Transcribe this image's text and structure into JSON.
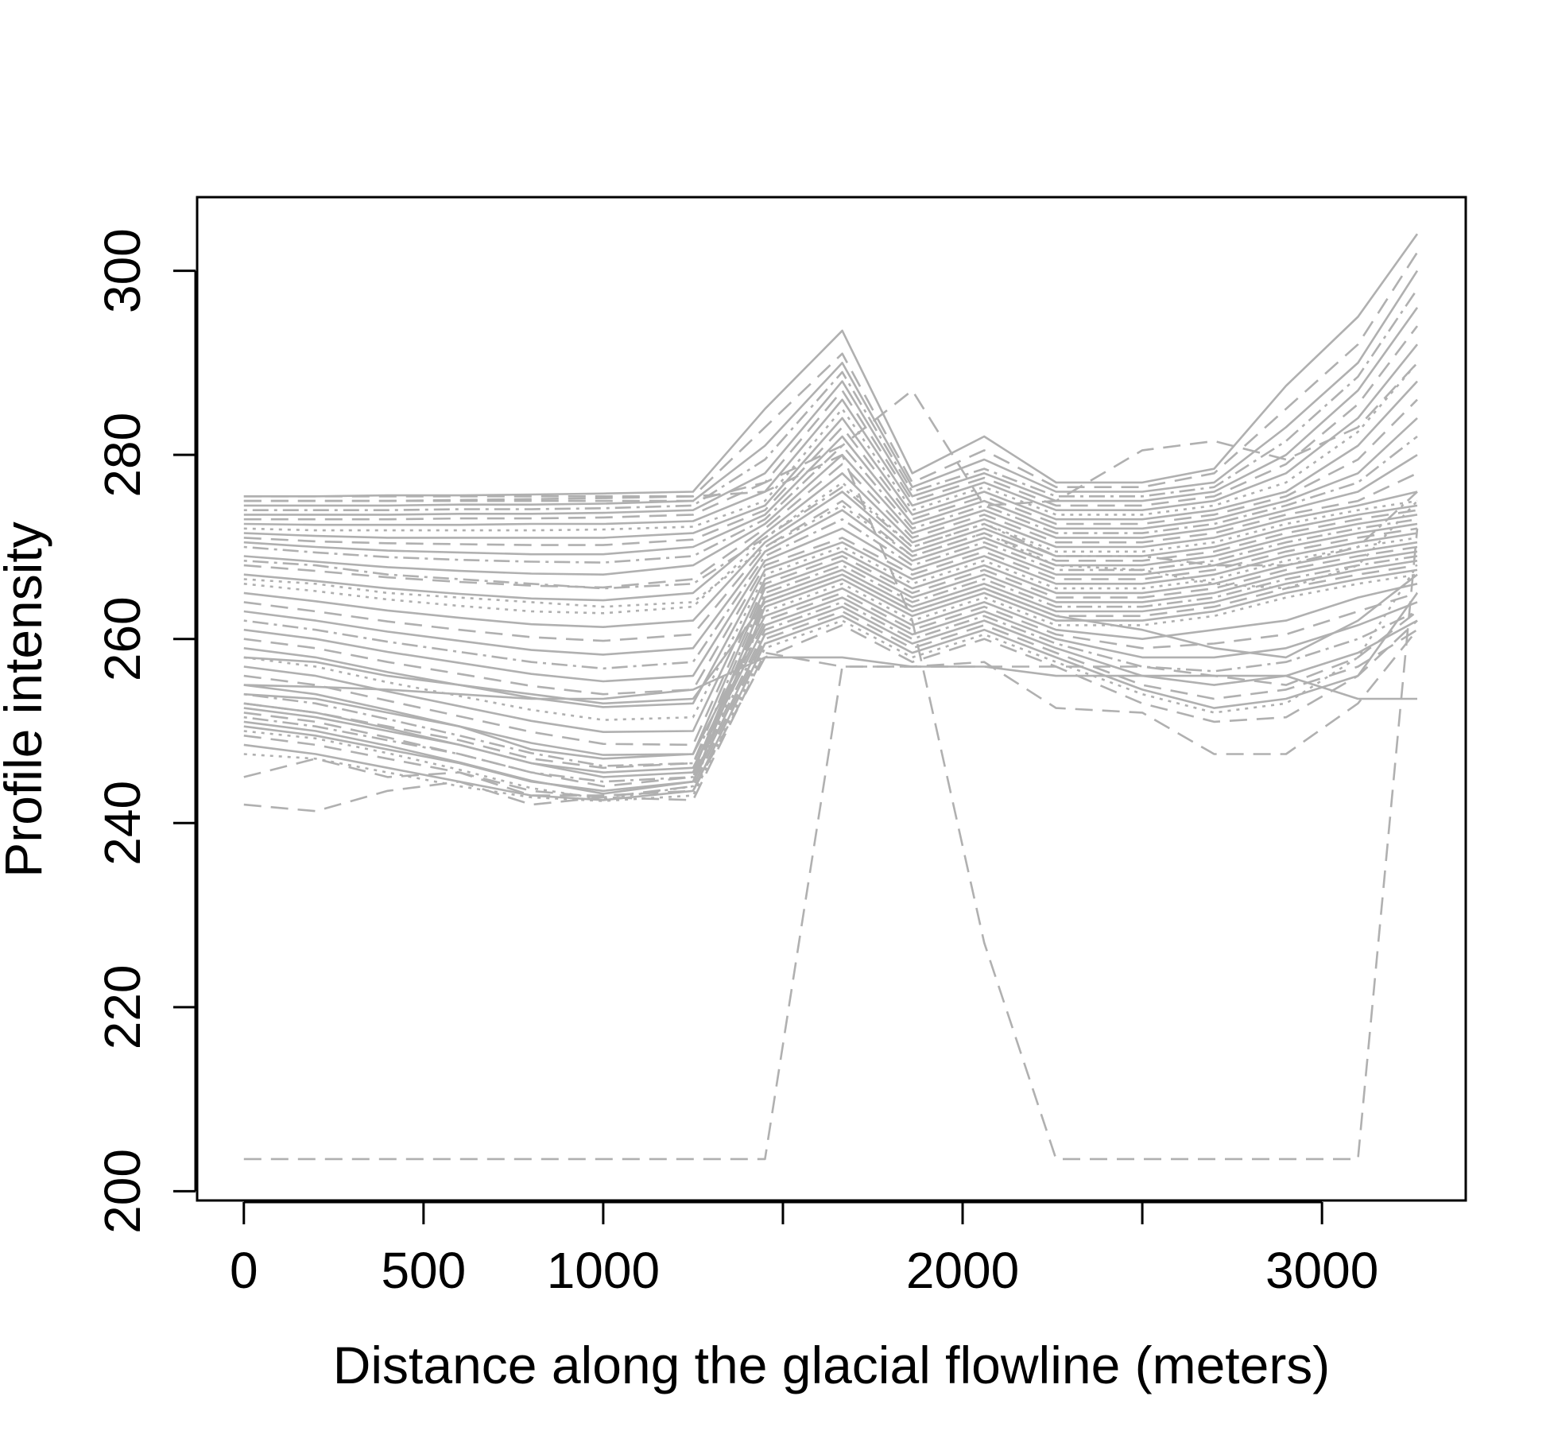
{
  "chart_data": {
    "type": "line",
    "title": "",
    "xlabel": "Distance along the glacial flowline (meters)",
    "ylabel": "Profile intensity",
    "xlim": [
      -130,
      3400
    ],
    "ylim": [
      199,
      308
    ],
    "x_ticks": [
      0,
      500,
      1000,
      1500,
      2000,
      2500,
      3000
    ],
    "x_tick_labels": [
      "0",
      "500",
      "1000",
      "",
      "2000",
      "",
      "3000"
    ],
    "y_ticks": [
      200,
      220,
      240,
      260,
      280,
      300
    ],
    "y_tick_labels": [
      "200",
      "220",
      "240",
      "260",
      "280",
      "300"
    ],
    "grid": false,
    "legend": "none",
    "line_color": "#b0b0b0",
    "x": [
      0,
      200,
      400,
      600,
      800,
      1000,
      1250,
      1450,
      1665,
      1860,
      2060,
      2260,
      2500,
      2700,
      2900,
      3100,
      3265
    ],
    "series": [
      {
        "style": "solid",
        "values": [
          275.5,
          275.5,
          275.6,
          275.6,
          275.7,
          275.8,
          276.0,
          285.0,
          293.5,
          278.0,
          282.0,
          277.0,
          277.0,
          278.5,
          287.5,
          295.0,
          304.0
        ]
      },
      {
        "style": "dashed",
        "values": [
          275.0,
          275.0,
          275.0,
          275.1,
          275.2,
          275.3,
          275.5,
          283.0,
          291.0,
          277.0,
          280.5,
          276.5,
          276.5,
          278.0,
          285.0,
          292.0,
          302.0
        ]
      },
      {
        "style": "solid",
        "values": [
          274.5,
          274.5,
          274.5,
          274.6,
          274.6,
          274.7,
          275.0,
          281.0,
          290.0,
          276.5,
          279.5,
          276.0,
          276.0,
          277.0,
          283.0,
          290.0,
          300.0
        ]
      },
      {
        "style": "dotdash",
        "values": [
          274.0,
          274.0,
          274.0,
          274.1,
          274.1,
          274.2,
          274.5,
          279.5,
          289.0,
          276.0,
          278.5,
          275.5,
          275.5,
          276.5,
          281.5,
          288.5,
          298.0
        ]
      },
      {
        "style": "solid",
        "values": [
          273.5,
          273.5,
          273.5,
          273.6,
          273.6,
          273.7,
          274.0,
          278.0,
          288.0,
          275.5,
          278.0,
          275.0,
          275.0,
          276.0,
          280.0,
          287.0,
          296.0
        ]
      },
      {
        "style": "dashed",
        "values": [
          273.0,
          273.0,
          273.0,
          273.1,
          273.1,
          273.2,
          273.5,
          277.0,
          287.0,
          275.0,
          277.5,
          274.5,
          274.5,
          275.5,
          279.0,
          285.5,
          294.0
        ]
      },
      {
        "style": "solid",
        "values": [
          272.5,
          272.4,
          272.4,
          272.4,
          272.5,
          272.5,
          272.8,
          276.0,
          286.0,
          274.5,
          277.0,
          274.0,
          274.0,
          275.0,
          278.0,
          284.0,
          292.0
        ]
      },
      {
        "style": "dotted",
        "values": [
          272.0,
          271.8,
          271.8,
          271.8,
          271.8,
          271.9,
          272.2,
          275.0,
          285.0,
          274.0,
          276.5,
          273.5,
          273.5,
          274.5,
          277.0,
          282.5,
          290.0
        ]
      },
      {
        "style": "solid",
        "values": [
          271.5,
          271.2,
          271.0,
          271.0,
          271.0,
          271.0,
          271.5,
          274.5,
          284.0,
          273.5,
          276.0,
          273.0,
          273.0,
          274.0,
          276.0,
          281.0,
          288.0
        ]
      },
      {
        "style": "dashed",
        "values": [
          271.0,
          270.6,
          270.4,
          270.3,
          270.2,
          270.2,
          270.8,
          274.0,
          283.0,
          273.0,
          275.5,
          272.5,
          272.5,
          273.5,
          275.5,
          279.5,
          286.0
        ]
      },
      {
        "style": "solid",
        "values": [
          270.5,
          270.0,
          269.6,
          269.4,
          269.2,
          269.2,
          270.0,
          273.5,
          282.0,
          272.5,
          275.0,
          272.0,
          272.0,
          273.0,
          275.0,
          278.0,
          284.0
        ]
      },
      {
        "style": "dotdash",
        "values": [
          270.0,
          269.4,
          268.9,
          268.6,
          268.4,
          268.3,
          269.0,
          273.0,
          281.0,
          272.0,
          274.5,
          271.5,
          271.5,
          272.5,
          274.5,
          277.0,
          282.0
        ]
      },
      {
        "style": "solid",
        "values": [
          269.0,
          268.4,
          267.8,
          267.4,
          267.1,
          267.0,
          268.0,
          272.5,
          280.0,
          271.5,
          274.0,
          271.0,
          271.0,
          272.0,
          274.0,
          276.0,
          280.0
        ]
      },
      {
        "style": "dashed",
        "values": [
          268.0,
          267.4,
          266.7,
          266.2,
          265.8,
          265.6,
          266.5,
          272.0,
          279.0,
          271.0,
          273.5,
          270.5,
          270.5,
          271.5,
          273.5,
          275.0,
          278.0
        ]
      },
      {
        "style": "solid",
        "values": [
          267.0,
          266.3,
          265.5,
          264.9,
          264.4,
          264.2,
          265.0,
          271.5,
          278.0,
          270.5,
          273.0,
          270.0,
          270.0,
          271.0,
          273.0,
          274.5,
          276.0
        ]
      },
      {
        "style": "dotted",
        "values": [
          266.0,
          265.2,
          264.3,
          263.6,
          263.0,
          262.8,
          263.5,
          271.0,
          277.0,
          270.0,
          272.5,
          269.5,
          269.5,
          270.5,
          272.5,
          274.0,
          275.0
        ]
      },
      {
        "style": "solid",
        "values": [
          265.0,
          264.1,
          263.1,
          262.3,
          261.6,
          261.3,
          262.0,
          270.5,
          276.0,
          269.5,
          272.0,
          269.0,
          269.0,
          270.0,
          272.0,
          273.5,
          274.5
        ]
      },
      {
        "style": "dashed",
        "values": [
          264.0,
          263.0,
          261.9,
          261.0,
          260.2,
          259.8,
          260.5,
          270.0,
          275.0,
          269.0,
          271.5,
          268.5,
          268.5,
          269.5,
          271.5,
          273.0,
          274.0
        ]
      },
      {
        "style": "solid",
        "values": [
          263.0,
          262.0,
          260.8,
          259.8,
          258.8,
          258.3,
          259.0,
          269.5,
          274.0,
          268.5,
          271.0,
          268.0,
          268.0,
          269.0,
          271.0,
          272.5,
          273.5
        ]
      },
      {
        "style": "dotdash",
        "values": [
          262.0,
          261.0,
          259.7,
          258.6,
          257.5,
          256.8,
          257.5,
          269.0,
          273.0,
          268.0,
          270.5,
          267.5,
          267.5,
          268.5,
          270.5,
          272.0,
          273.0
        ]
      },
      {
        "style": "solid",
        "values": [
          261.0,
          260.0,
          258.6,
          257.4,
          256.2,
          255.4,
          256.0,
          268.5,
          272.0,
          267.5,
          270.0,
          267.0,
          267.0,
          268.0,
          270.0,
          271.5,
          272.5
        ]
      },
      {
        "style": "dashed",
        "values": [
          260.0,
          259.0,
          257.5,
          256.2,
          254.9,
          254.0,
          254.5,
          268.0,
          271.0,
          267.0,
          269.5,
          266.5,
          266.5,
          267.5,
          269.5,
          271.0,
          272.0
        ]
      },
      {
        "style": "solid",
        "values": [
          259.0,
          258.0,
          256.4,
          255.0,
          253.6,
          252.6,
          253.0,
          267.5,
          270.5,
          266.5,
          269.0,
          266.0,
          266.0,
          267.0,
          269.0,
          270.5,
          271.5
        ]
      },
      {
        "style": "dotted",
        "values": [
          258.0,
          257.0,
          255.3,
          253.8,
          252.3,
          251.2,
          251.5,
          267.0,
          270.0,
          266.0,
          268.5,
          265.5,
          265.5,
          266.5,
          268.5,
          270.0,
          271.0
        ]
      },
      {
        "style": "solid",
        "values": [
          257.0,
          256.0,
          254.3,
          252.7,
          251.1,
          249.9,
          250.0,
          266.5,
          269.5,
          265.5,
          268.0,
          265.0,
          265.0,
          266.0,
          268.0,
          269.5,
          270.5
        ]
      },
      {
        "style": "dashed",
        "values": [
          256.0,
          255.0,
          253.3,
          251.6,
          249.9,
          248.6,
          248.5,
          266.0,
          269.0,
          265.0,
          267.5,
          264.5,
          264.5,
          265.5,
          267.5,
          269.0,
          270.0
        ]
      },
      {
        "style": "solid",
        "values": [
          255.0,
          254.0,
          252.3,
          250.5,
          248.7,
          247.4,
          247.5,
          265.5,
          268.5,
          264.5,
          267.0,
          264.0,
          264.0,
          265.0,
          267.0,
          268.5,
          269.5
        ]
      },
      {
        "style": "dotdash",
        "values": [
          254.0,
          253.0,
          251.3,
          249.5,
          247.6,
          246.2,
          246.5,
          265.0,
          268.0,
          264.0,
          266.5,
          263.5,
          263.5,
          264.5,
          266.5,
          268.0,
          269.0
        ]
      },
      {
        "style": "solid",
        "values": [
          253.0,
          252.0,
          250.3,
          248.5,
          246.5,
          245.0,
          245.5,
          264.5,
          267.5,
          263.5,
          266.0,
          263.0,
          263.0,
          264.0,
          266.0,
          267.5,
          268.5
        ]
      },
      {
        "style": "dashed",
        "values": [
          252.0,
          251.0,
          249.3,
          247.5,
          245.5,
          244.0,
          245.0,
          264.0,
          267.0,
          263.0,
          265.5,
          262.5,
          262.5,
          263.5,
          265.5,
          267.0,
          268.0
        ]
      },
      {
        "style": "solid",
        "values": [
          251.0,
          250.0,
          248.4,
          246.6,
          244.6,
          243.2,
          244.5,
          263.5,
          266.5,
          262.5,
          265.0,
          262.0,
          262.0,
          263.0,
          265.0,
          266.5,
          267.5
        ]
      },
      {
        "style": "dotted",
        "values": [
          250.0,
          249.2,
          247.6,
          245.8,
          243.8,
          242.6,
          244.0,
          263.0,
          266.0,
          262.0,
          264.5,
          261.5,
          261.5,
          262.5,
          264.5,
          266.0,
          267.0
        ]
      },
      {
        "style": "solid",
        "values": [
          254.0,
          253.5,
          252.0,
          250.5,
          248.0,
          247.0,
          247.5,
          262.5,
          265.5,
          261.5,
          264.0,
          261.0,
          260.0,
          261.0,
          262.0,
          264.5,
          266.0
        ]
      },
      {
        "style": "dashed",
        "values": [
          253.0,
          252.0,
          250.5,
          249.0,
          247.0,
          246.0,
          246.5,
          262.0,
          265.0,
          261.0,
          263.5,
          260.5,
          259.0,
          259.5,
          260.5,
          263.0,
          265.0
        ]
      },
      {
        "style": "solid",
        "values": [
          252.5,
          251.5,
          250.0,
          248.5,
          246.5,
          245.5,
          246.0,
          261.5,
          264.5,
          260.5,
          263.0,
          260.0,
          258.0,
          258.0,
          259.0,
          261.5,
          264.0
        ]
      },
      {
        "style": "dotdash",
        "values": [
          251.5,
          250.5,
          249.0,
          247.5,
          245.5,
          244.5,
          245.0,
          261.0,
          264.0,
          260.0,
          262.5,
          259.5,
          257.0,
          256.5,
          257.5,
          260.0,
          263.0
        ]
      },
      {
        "style": "solid",
        "values": [
          250.5,
          249.5,
          248.0,
          246.5,
          244.5,
          243.5,
          244.5,
          260.5,
          263.5,
          259.5,
          262.0,
          259.0,
          256.0,
          255.0,
          256.0,
          258.5,
          262.0
        ]
      },
      {
        "style": "dashed",
        "values": [
          249.5,
          248.5,
          247.0,
          245.5,
          243.5,
          242.8,
          244.0,
          260.0,
          263.0,
          259.0,
          261.5,
          258.5,
          255.0,
          253.5,
          254.5,
          257.0,
          261.0
        ]
      },
      {
        "style": "solid",
        "values": [
          248.5,
          247.5,
          246.0,
          244.5,
          243.0,
          242.5,
          243.5,
          259.5,
          262.5,
          258.5,
          261.0,
          258.0,
          254.5,
          252.5,
          253.5,
          256.0,
          265.0
        ]
      },
      {
        "style": "dotted",
        "values": [
          247.5,
          247.0,
          245.5,
          244.0,
          242.8,
          242.4,
          243.0,
          259.0,
          262.0,
          258.0,
          260.5,
          257.5,
          254.0,
          252.0,
          253.0,
          258.0,
          268.0
        ]
      },
      {
        "style": "solid",
        "values": [
          255.0,
          254.8,
          254.5,
          254.0,
          253.5,
          253.5,
          254.5,
          258.0,
          258.0,
          257.0,
          257.0,
          256.0,
          256.0,
          256.0,
          256.0,
          253.5,
          253.5
        ]
      },
      {
        "style": "dashed",
        "values": [
          245.0,
          247.0,
          245.0,
          245.5,
          243.0,
          243.0,
          243.5,
          258.0,
          261.5,
          257.5,
          260.0,
          257.0,
          253.0,
          251.0,
          251.5,
          256.0,
          262.0
        ]
      },
      {
        "style": "dashed",
        "values": [
          242.0,
          241.3,
          243.5,
          244.5,
          242.0,
          242.8,
          242.5,
          258.5,
          257.0,
          257.0,
          257.5,
          252.5,
          252.0,
          247.5,
          247.5,
          253.0,
          261.0
        ]
      },
      {
        "style": "solid",
        "values": [
          258.0,
          257.5,
          256.0,
          255.0,
          254.0,
          253.0,
          253.5,
          264.0,
          267.0,
          263.0,
          265.5,
          262.5,
          261.0,
          259.0,
          258.0,
          262.0,
          267.0
        ]
      },
      {
        "style": "dotdash",
        "values": [
          268.5,
          268.0,
          267.0,
          266.5,
          266.0,
          265.5,
          266.0,
          271.0,
          276.5,
          270.0,
          272.5,
          269.0,
          269.0,
          268.0,
          268.0,
          270.0,
          276.0
        ]
      },
      {
        "style": "dotted",
        "values": [
          266.5,
          266.0,
          265.0,
          264.5,
          264.0,
          263.5,
          264.0,
          270.0,
          274.5,
          269.0,
          271.5,
          268.0,
          267.5,
          266.0,
          265.5,
          268.0,
          275.0
        ]
      },
      {
        "style": "dashed",
        "values": [
          275.0,
          275.0,
          275.0,
          275.0,
          275.0,
          275.0,
          275.0,
          277.0,
          281.0,
          287.0,
          274.5,
          275.0,
          280.5,
          281.5,
          279.5,
          283.0,
          290.0
        ]
      },
      {
        "style": "dashed",
        "values": [
          275.5,
          275.5,
          275.5,
          275.5,
          275.5,
          275.5,
          275.5,
          276.0,
          280.0,
          262.0,
          227.0,
          203.5,
          203.5,
          203.5,
          203.5,
          203.5,
          272.0
        ]
      },
      {
        "style": "dashed",
        "values": [
          203.5,
          203.5,
          203.5,
          203.5,
          203.5,
          203.5,
          203.5,
          203.5,
          257.0,
          257.0,
          257.0,
          257.0,
          257.0,
          256.0,
          255.0,
          258.0,
          263.0
        ]
      }
    ]
  }
}
